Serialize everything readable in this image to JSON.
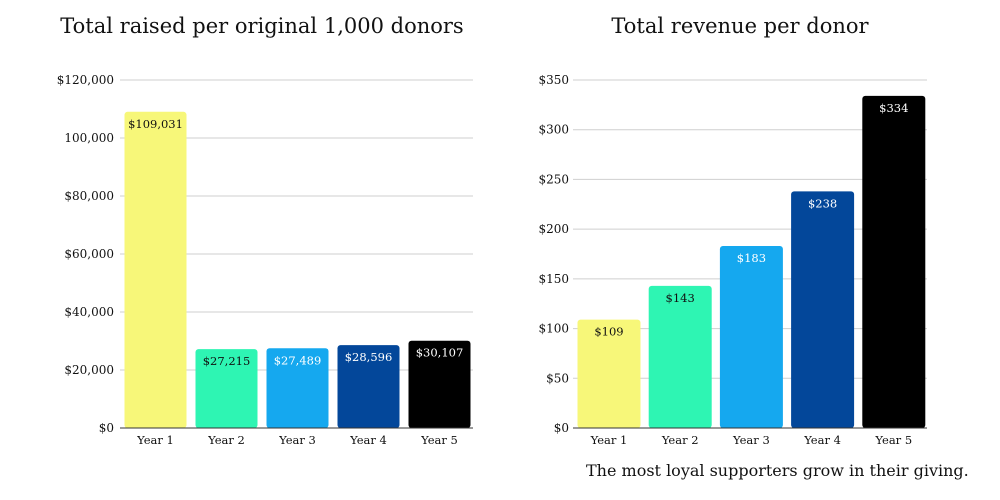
{
  "caption": "The most loyal supporters grow in their giving.",
  "chart_data": [
    {
      "type": "bar",
      "title": "Total raised per original 1,000 donors",
      "categories": [
        "Year 1",
        "Year 2",
        "Year 3",
        "Year 4",
        "Year 5"
      ],
      "values": [
        109031,
        27215,
        27489,
        28596,
        30107
      ],
      "data_labels": [
        "$109,031",
        "$27,215",
        "$27,489",
        "$28,596",
        "$30,107"
      ],
      "yticks": [
        0,
        20000,
        40000,
        60000,
        80000,
        100000,
        120000
      ],
      "ytick_labels": [
        "$0",
        "$20,000",
        "$40,000",
        "$60,000",
        "$80,000",
        "100,000",
        "$120,000"
      ],
      "ylim": [
        0,
        120000
      ],
      "xlabel": "",
      "ylabel": "",
      "grid": true,
      "legend": "none",
      "colors": [
        "#f7f779",
        "#2ef5b3",
        "#15a8ef",
        "#03479a",
        "#000000"
      ],
      "label_colors": [
        "#111111",
        "#111111",
        "#ffffff",
        "#ffffff",
        "#ffffff"
      ]
    },
    {
      "type": "bar",
      "title": "Total revenue per donor",
      "categories": [
        "Year 1",
        "Year 2",
        "Year 3",
        "Year 4",
        "Year 5"
      ],
      "values": [
        109,
        143,
        183,
        238,
        334
      ],
      "data_labels": [
        "$109",
        "$143",
        "$183",
        "$238",
        "$334"
      ],
      "yticks": [
        0,
        50,
        100,
        150,
        200,
        250,
        300,
        350
      ],
      "ytick_labels": [
        "$0",
        "$50",
        "$100",
        "$150",
        "$200",
        "$250",
        "$300",
        "$350"
      ],
      "ylim": [
        0,
        350
      ],
      "xlabel": "",
      "ylabel": "",
      "grid": true,
      "legend": "none",
      "colors": [
        "#f7f779",
        "#2ef5b3",
        "#15a8ef",
        "#03479a",
        "#000000"
      ],
      "label_colors": [
        "#111111",
        "#111111",
        "#ffffff",
        "#ffffff",
        "#ffffff"
      ]
    }
  ]
}
